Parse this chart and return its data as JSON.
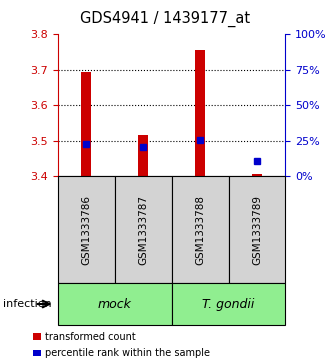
{
  "title": "GDS4941 / 1439177_at",
  "samples": [
    "GSM1333786",
    "GSM1333787",
    "GSM1333788",
    "GSM1333789"
  ],
  "bar_bottoms": [
    3.4,
    3.4,
    3.4,
    3.4
  ],
  "bar_tops": [
    3.695,
    3.515,
    3.755,
    3.405
  ],
  "blue_y": [
    3.49,
    3.482,
    3.502,
    3.443
  ],
  "ylim": [
    3.4,
    3.8
  ],
  "yticks_left": [
    3.4,
    3.5,
    3.6,
    3.7,
    3.8
  ],
  "yticks_right": [
    0,
    25,
    50,
    75,
    100
  ],
  "bar_color": "#cc0000",
  "blue_color": "#0000cc",
  "groups": [
    {
      "label": "mock",
      "indices": [
        0,
        1
      ],
      "color": "#90ee90"
    },
    {
      "label": "T. gondii",
      "indices": [
        2,
        3
      ],
      "color": "#90ee90"
    }
  ],
  "infection_label": "infection",
  "legend_red": "transformed count",
  "legend_blue": "percentile rank within the sample",
  "background_plot": "#ffffff",
  "background_sample_box": "#d3d3d3",
  "left_axis_color": "#cc0000",
  "right_axis_color": "#0000cc"
}
